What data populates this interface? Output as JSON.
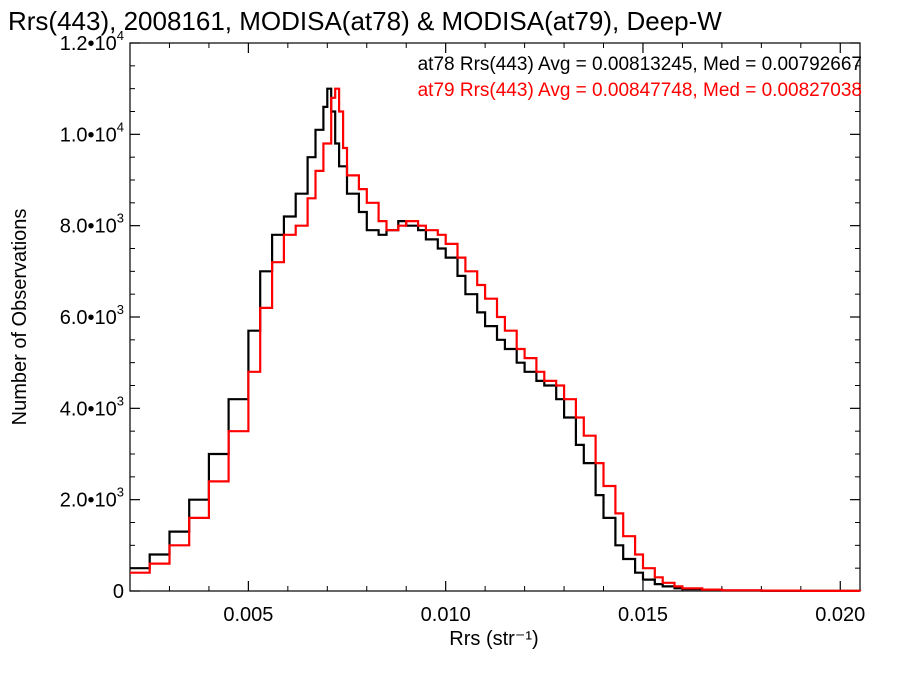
{
  "chart_data": {
    "type": "line",
    "title": "Rrs(443), 2008161, MODISA(at78) & MODISA(at79), Deep-W",
    "xlabel": "Rrs (str⁻¹)",
    "ylabel": "Number of Observations",
    "xlim": [
      0.002,
      0.0205
    ],
    "ylim": [
      0,
      12000
    ],
    "x_ticks": [
      0.005,
      0.01,
      0.015,
      0.02
    ],
    "x_tick_labels": [
      "0.005",
      "0.010",
      "0.015",
      "0.020"
    ],
    "y_ticks": [
      0,
      2000,
      4000,
      6000,
      8000,
      10000,
      12000
    ],
    "y_tick_labels": [
      {
        "mantissa": "0",
        "exponent": ""
      },
      {
        "mantissa": "2.0•10",
        "exponent": "3"
      },
      {
        "mantissa": "4.0•10",
        "exponent": "3"
      },
      {
        "mantissa": "6.0•10",
        "exponent": "3"
      },
      {
        "mantissa": "8.0•10",
        "exponent": "3"
      },
      {
        "mantissa": "1.0•10",
        "exponent": "4"
      },
      {
        "mantissa": "1.2•10",
        "exponent": "4"
      }
    ],
    "legend": [
      {
        "text": "at78 Rrs(443) Avg = 0.00813245, Med = 0.00792667",
        "color": "#000000"
      },
      {
        "text": "at79 Rrs(443) Avg = 0.00847748, Med = 0.00827038",
        "color": "#ff0000"
      }
    ],
    "series": [
      {
        "color": "#000000",
        "x": [
          0.002,
          0.0025,
          0.003,
          0.0035,
          0.004,
          0.0045,
          0.005,
          0.0053,
          0.0056,
          0.0059,
          0.0062,
          0.0065,
          0.0067,
          0.0069,
          0.007,
          0.0071,
          0.0072,
          0.0073,
          0.0075,
          0.0078,
          0.008,
          0.0083,
          0.0085,
          0.0088,
          0.009,
          0.0093,
          0.0095,
          0.0098,
          0.01,
          0.0103,
          0.0105,
          0.0108,
          0.011,
          0.0113,
          0.0115,
          0.0118,
          0.012,
          0.0123,
          0.0125,
          0.0128,
          0.013,
          0.0133,
          0.0135,
          0.0138,
          0.014,
          0.0143,
          0.0145,
          0.0148,
          0.015,
          0.0153,
          0.0155,
          0.0158,
          0.016,
          0.0165,
          0.017,
          0.018,
          0.019,
          0.0205
        ],
        "y": [
          500,
          800,
          1300,
          2000,
          3000,
          4200,
          5700,
          7000,
          7800,
          8200,
          8700,
          9500,
          10100,
          10600,
          11000,
          10500,
          9800,
          9300,
          8700,
          8300,
          7900,
          7800,
          7900,
          8100,
          8000,
          7900,
          7700,
          7500,
          7300,
          6900,
          6500,
          6100,
          5800,
          5500,
          5300,
          5000,
          4800,
          4600,
          4500,
          4200,
          3800,
          3200,
          2800,
          2100,
          1600,
          1000,
          700,
          400,
          250,
          150,
          100,
          60,
          40,
          20,
          10,
          5,
          2,
          0
        ]
      },
      {
        "color": "#ff0000",
        "x": [
          0.002,
          0.0025,
          0.003,
          0.0035,
          0.004,
          0.0045,
          0.005,
          0.0053,
          0.0056,
          0.0059,
          0.0062,
          0.0065,
          0.0067,
          0.0069,
          0.0071,
          0.0072,
          0.0073,
          0.0074,
          0.0075,
          0.0078,
          0.008,
          0.0083,
          0.0085,
          0.0088,
          0.009,
          0.0093,
          0.0095,
          0.0098,
          0.01,
          0.0103,
          0.0105,
          0.0108,
          0.011,
          0.0113,
          0.0115,
          0.0118,
          0.012,
          0.0123,
          0.0125,
          0.0128,
          0.013,
          0.0133,
          0.0135,
          0.0138,
          0.014,
          0.0143,
          0.0145,
          0.0148,
          0.015,
          0.0153,
          0.0155,
          0.0158,
          0.016,
          0.0165,
          0.017,
          0.018,
          0.019,
          0.0205
        ],
        "y": [
          400,
          600,
          1000,
          1600,
          2400,
          3500,
          4800,
          6200,
          7200,
          7800,
          8000,
          8600,
          9200,
          9800,
          10800,
          11000,
          10500,
          9700,
          9100,
          8800,
          8500,
          8100,
          7900,
          8000,
          8100,
          8000,
          7900,
          7800,
          7600,
          7300,
          7000,
          6700,
          6400,
          6000,
          5700,
          5300,
          5100,
          4800,
          4600,
          4500,
          4200,
          3800,
          3400,
          2800,
          2300,
          1700,
          1200,
          800,
          500,
          300,
          180,
          100,
          60,
          30,
          15,
          8,
          3,
          0
        ]
      }
    ]
  }
}
